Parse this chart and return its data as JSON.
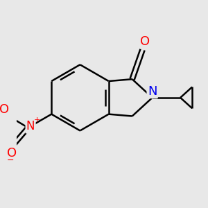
{
  "bg_color": "#e8e8e8",
  "bond_color": "#000000",
  "bond_width": 1.8,
  "atom_colors": {
    "O": "#ff0000",
    "N_amine": "#0000ee",
    "N_nitro": "#ff0000",
    "C": "#000000"
  },
  "font_size_atoms": 13,
  "font_size_charges": 8,
  "figsize": [
    3.0,
    3.0
  ],
  "dpi": 100,
  "xlim": [
    -1.6,
    1.4
  ],
  "ylim": [
    -1.3,
    1.2
  ]
}
